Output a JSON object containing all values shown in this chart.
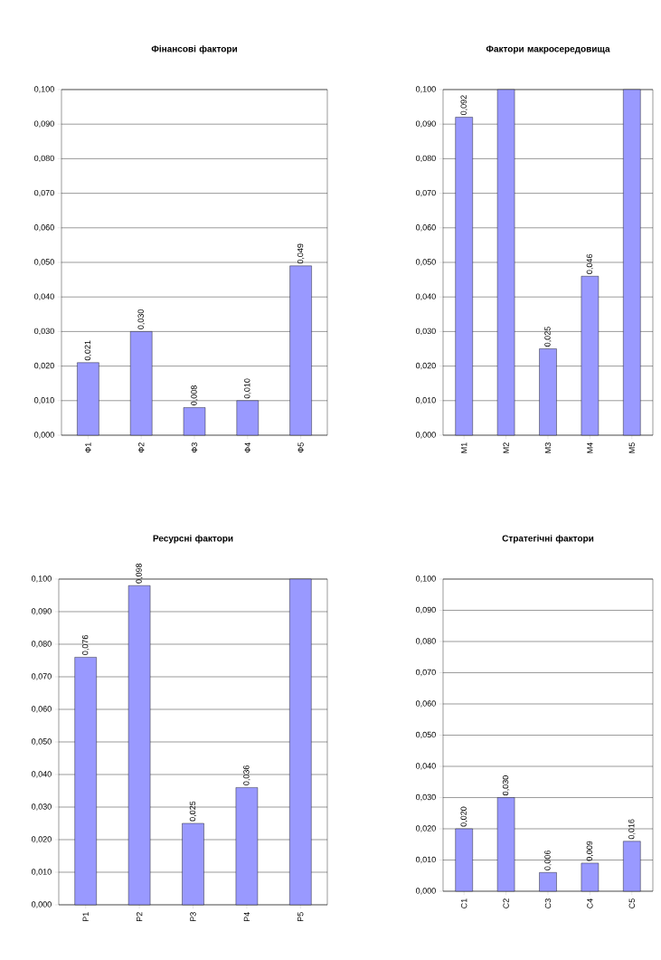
{
  "chart_data": [
    {
      "type": "bar",
      "title": "Фінансові фактори",
      "categories": [
        "Ф1",
        "Ф2",
        "Ф3",
        "Ф4",
        "Ф5"
      ],
      "values": [
        0.021,
        0.03,
        0.008,
        0.01,
        0.049
      ],
      "value_labels": [
        "0,021",
        "0,030",
        "0,008",
        "0,010",
        "0,049"
      ],
      "color": "#9999ff",
      "ylim": [
        0,
        0.1
      ],
      "yticks": [
        {
          "value": 0,
          "label": "0,000"
        },
        {
          "value": 0.01,
          "label": "0,010"
        },
        {
          "value": 0.02,
          "label": "0,020"
        },
        {
          "value": 0.03,
          "label": "0,030"
        },
        {
          "value": 0.04,
          "label": "0,040"
        },
        {
          "value": 0.05,
          "label": "0,050"
        },
        {
          "value": 0.06,
          "label": "0,060"
        },
        {
          "value": 0.07,
          "label": "0,070"
        },
        {
          "value": 0.08,
          "label": "0,080"
        },
        {
          "value": 0.09,
          "label": "0,090"
        },
        {
          "value": 0.1,
          "label": "0,100"
        }
      ],
      "grid": "y"
    },
    {
      "type": "bar",
      "title": "Фактори макросередовища",
      "categories": [
        "М1",
        "М2",
        "М3",
        "М4",
        "М5"
      ],
      "values": [
        0.092,
        0.1,
        0.025,
        0.046,
        0.1
      ],
      "value_labels": [
        "0,092",
        null,
        "0,025",
        "0,046",
        null
      ],
      "color": "#9999ff",
      "ylim": [
        0,
        0.1
      ],
      "yticks": [
        {
          "value": 0,
          "label": "0,000"
        },
        {
          "value": 0.01,
          "label": "0,010"
        },
        {
          "value": 0.02,
          "label": "0,020"
        },
        {
          "value": 0.03,
          "label": "0,030"
        },
        {
          "value": 0.04,
          "label": "0,040"
        },
        {
          "value": 0.05,
          "label": "0,050"
        },
        {
          "value": 0.06,
          "label": "0,060"
        },
        {
          "value": 0.07,
          "label": "0,070"
        },
        {
          "value": 0.08,
          "label": "0,080"
        },
        {
          "value": 0.09,
          "label": "0,090"
        },
        {
          "value": 0.1,
          "label": "0,100"
        }
      ],
      "grid": "y"
    },
    {
      "type": "bar",
      "title": "Ресурсні фактори",
      "categories": [
        "Р1",
        "Р2",
        "Р3",
        "Р4",
        "Р5"
      ],
      "values": [
        0.076,
        0.098,
        0.025,
        0.036,
        0.1
      ],
      "value_labels": [
        "0,076",
        "0,098",
        "0,025",
        "0,036",
        null
      ],
      "color": "#9999ff",
      "ylim": [
        0,
        0.1
      ],
      "yticks": [
        {
          "value": 0,
          "label": "0,000"
        },
        {
          "value": 0.01,
          "label": "0,010"
        },
        {
          "value": 0.02,
          "label": "0,020"
        },
        {
          "value": 0.03,
          "label": "0,030"
        },
        {
          "value": 0.04,
          "label": "0,040"
        },
        {
          "value": 0.05,
          "label": "0,050"
        },
        {
          "value": 0.06,
          "label": "0,060"
        },
        {
          "value": 0.07,
          "label": "0,070"
        },
        {
          "value": 0.08,
          "label": "0,080"
        },
        {
          "value": 0.09,
          "label": "0,090"
        },
        {
          "value": 0.1,
          "label": "0,100"
        }
      ],
      "grid": "y"
    },
    {
      "type": "bar",
      "title": "Стратегічні фактори",
      "categories": [
        "С1",
        "С2",
        "С3",
        "С4",
        "С5"
      ],
      "values": [
        0.02,
        0.03,
        0.006,
        0.009,
        0.016
      ],
      "value_labels": [
        "0,020",
        "0,030",
        "0,006",
        "0,009",
        "0,016"
      ],
      "color": "#9999ff",
      "ylim": [
        0,
        0.1
      ],
      "yticks": [
        {
          "value": 0,
          "label": "0,000"
        },
        {
          "value": 0.01,
          "label": "0,010"
        },
        {
          "value": 0.02,
          "label": "0,020"
        },
        {
          "value": 0.03,
          "label": "0,030"
        },
        {
          "value": 0.04,
          "label": "0,040"
        },
        {
          "value": 0.05,
          "label": "0,050"
        },
        {
          "value": 0.06,
          "label": "0,060"
        },
        {
          "value": 0.07,
          "label": "0,070"
        },
        {
          "value": 0.08,
          "label": "0,080"
        },
        {
          "value": 0.09,
          "label": "0,090"
        },
        {
          "value": 0.1,
          "label": "0,100"
        }
      ],
      "grid": "y"
    }
  ]
}
